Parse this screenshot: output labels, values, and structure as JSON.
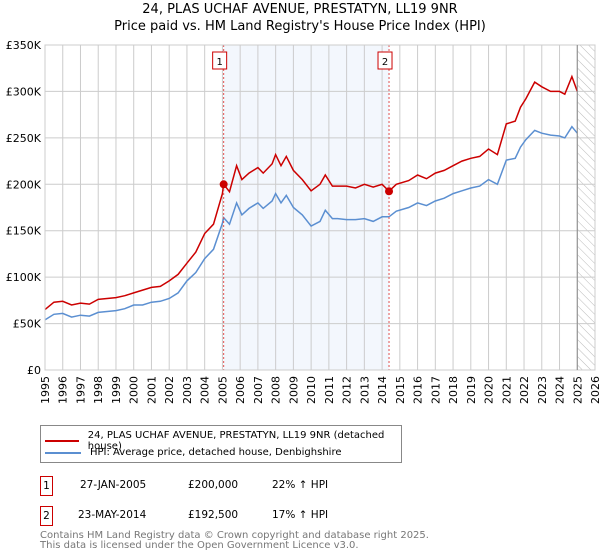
{
  "chart_data": {
    "type": "line",
    "title": "24, PLAS UCHAF AVENUE, PRESTATYN, LL19 9NR",
    "subtitle": "Price paid vs. HM Land Registry's House Price Index (HPI)",
    "xlim": [
      1995,
      2026
    ],
    "ylim": [
      0,
      350000
    ],
    "x_ticks": [
      "1995",
      "1996",
      "1997",
      "1998",
      "1999",
      "2000",
      "2001",
      "2002",
      "2003",
      "2004",
      "2005",
      "2006",
      "2007",
      "2008",
      "2009",
      "2010",
      "2011",
      "2012",
      "2013",
      "2014",
      "2015",
      "2016",
      "2017",
      "2018",
      "2019",
      "2020",
      "2021",
      "2022",
      "2023",
      "2024",
      "2025",
      "2026"
    ],
    "y_ticks": [
      {
        "v": 0,
        "label": "£0"
      },
      {
        "v": 50000,
        "label": "£50K"
      },
      {
        "v": 100000,
        "label": "£100K"
      },
      {
        "v": 150000,
        "label": "£150K"
      },
      {
        "v": 200000,
        "label": "£200K"
      },
      {
        "v": 250000,
        "label": "£250K"
      },
      {
        "v": 300000,
        "label": "£300K"
      },
      {
        "v": 350000,
        "label": "£350K"
      }
    ],
    "grid": true,
    "shaded_period": [
      2005.07,
      2014.39
    ],
    "forecast_hatch_from": 2025.0,
    "series": [
      {
        "name": "24, PLAS UCHAF AVENUE, PRESTATYN, LL19 9NR (detached house)",
        "color": "#cc0000",
        "x": [
          1995,
          1995.5,
          1996,
          1996.5,
          1997,
          1997.5,
          1998,
          1998.5,
          1999,
          1999.5,
          2000,
          2000.5,
          2001,
          2001.5,
          2002,
          2002.5,
          2003,
          2003.5,
          2004,
          2004.5,
          2005,
          2005.07,
          2005.4,
          2005.8,
          2006.1,
          2006.5,
          2007,
          2007.3,
          2007.8,
          2008,
          2008.3,
          2008.6,
          2009,
          2009.5,
          2010,
          2010.5,
          2010.8,
          2011.2,
          2011.5,
          2012,
          2012.5,
          2013,
          2013.5,
          2014,
          2014.39,
          2014.8,
          2015.5,
          2016,
          2016.5,
          2017,
          2017.5,
          2018,
          2018.5,
          2019,
          2019.5,
          2020,
          2020.5,
          2021,
          2021.5,
          2021.8,
          2022.1,
          2022.6,
          2023,
          2023.5,
          2024,
          2024.3,
          2024.7,
          2025
        ],
        "y": [
          65000,
          73000,
          74000,
          70000,
          72000,
          71000,
          76000,
          77000,
          78000,
          80000,
          83000,
          86000,
          89000,
          90000,
          96000,
          103000,
          115000,
          127000,
          147000,
          157000,
          190000,
          200000,
          192000,
          220000,
          205000,
          212000,
          218000,
          212000,
          222000,
          232000,
          220000,
          230000,
          215000,
          205000,
          193000,
          200000,
          210000,
          198000,
          198000,
          198000,
          196000,
          200000,
          197000,
          200000,
          192500,
          200000,
          204000,
          210000,
          206000,
          212000,
          215000,
          220000,
          225000,
          228000,
          230000,
          238000,
          232000,
          265000,
          268000,
          283000,
          292000,
          310000,
          305000,
          300000,
          300000,
          297000,
          316000,
          300000
        ]
      },
      {
        "name": "HPI: Average price, detached house, Denbighshire",
        "color": "#5b8fd1",
        "x": [
          1995,
          1995.5,
          1996,
          1996.5,
          1997,
          1997.5,
          1998,
          1998.5,
          1999,
          1999.5,
          2000,
          2000.5,
          2001,
          2001.5,
          2002,
          2002.5,
          2003,
          2003.5,
          2004,
          2004.5,
          2005,
          2005.07,
          2005.4,
          2005.8,
          2006.1,
          2006.5,
          2007,
          2007.3,
          2007.8,
          2008,
          2008.3,
          2008.6,
          2009,
          2009.5,
          2010,
          2010.5,
          2010.8,
          2011.2,
          2011.5,
          2012,
          2012.5,
          2013,
          2013.5,
          2014,
          2014.39,
          2014.8,
          2015.5,
          2016,
          2016.5,
          2017,
          2017.5,
          2018,
          2018.5,
          2019,
          2019.5,
          2020,
          2020.5,
          2021,
          2021.5,
          2021.8,
          2022.1,
          2022.6,
          2023,
          2023.5,
          2024,
          2024.3,
          2024.7,
          2025
        ],
        "y": [
          54000,
          60000,
          61000,
          57000,
          59000,
          58000,
          62000,
          63000,
          64000,
          66000,
          70000,
          70000,
          73000,
          74000,
          77000,
          83000,
          96000,
          105000,
          120000,
          130000,
          158000,
          164000,
          157000,
          180000,
          167000,
          174000,
          180000,
          174000,
          182000,
          190000,
          180000,
          188000,
          175000,
          167000,
          155000,
          160000,
          172000,
          163000,
          163000,
          162000,
          162000,
          163000,
          160000,
          165000,
          165000,
          171000,
          175000,
          180000,
          177000,
          182000,
          185000,
          190000,
          193000,
          196000,
          198000,
          205000,
          200000,
          226000,
          228000,
          240000,
          248000,
          258000,
          255000,
          253000,
          252000,
          250000,
          262000,
          255000
        ]
      }
    ],
    "sales": [
      {
        "label": "1",
        "x": 2005.07,
        "y": 200000
      },
      {
        "label": "2",
        "x": 2014.39,
        "y": 192500
      }
    ]
  },
  "legend": {
    "red": "24, PLAS UCHAF AVENUE, PRESTATYN, LL19 9NR (detached house)",
    "blue": "HPI: Average price, detached house, Denbighshire"
  },
  "sales_table": [
    {
      "num": "1",
      "date": "27-JAN-2005",
      "price": "£200,000",
      "hpi": "22% ↑ HPI"
    },
    {
      "num": "2",
      "date": "23-MAY-2014",
      "price": "£192,500",
      "hpi": "17% ↑ HPI"
    }
  ],
  "footer": {
    "line1": "Contains HM Land Registry data © Crown copyright and database right 2025.",
    "line2": "This data is licensed under the Open Government Licence v3.0."
  }
}
